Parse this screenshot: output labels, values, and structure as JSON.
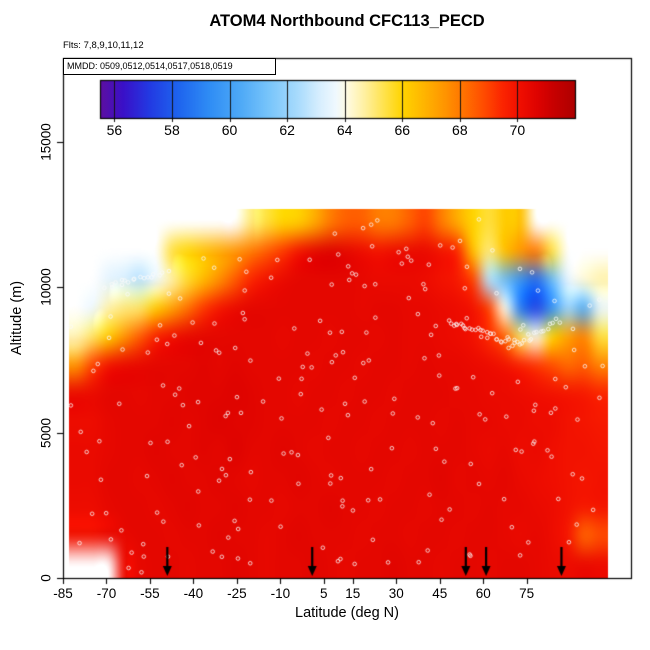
{
  "page": {
    "background": "#FFFFFF"
  },
  "chart_data": {
    "type": "heatmap",
    "title": "ATOM4 Northbound CFC113_PECD",
    "flights_label": "Flts: 7,8,9,10,11,12",
    "mmdd_label": "MMDD: 0509,0512,0514,0517,0518,0519",
    "xlabel": "Latitude (deg N)",
    "ylabel": "Altitude (m)",
    "x_ticks": [
      -85,
      -70,
      -55,
      -40,
      -25,
      -10,
      5,
      15,
      30,
      45,
      60,
      75
    ],
    "x_range": [
      -85,
      111
    ],
    "y_ticks": [
      0,
      5000,
      10000,
      15000
    ],
    "y_range": [
      0,
      17900
    ],
    "colorbar": {
      "ticks": [
        56,
        58,
        60,
        62,
        64,
        66,
        68,
        70
      ],
      "range": [
        55.5,
        72
      ],
      "stops": [
        [
          55.5,
          "#5E0FA0"
        ],
        [
          56.3,
          "#3A10C8"
        ],
        [
          57.2,
          "#2339E2"
        ],
        [
          58.2,
          "#1E63EE"
        ],
        [
          59.3,
          "#2F8DF5"
        ],
        [
          60.4,
          "#4FAAF7"
        ],
        [
          61.4,
          "#7AC6FB"
        ],
        [
          62.4,
          "#AADCFD"
        ],
        [
          63.1,
          "#D6EEFE"
        ],
        [
          63.7,
          "#F0F9FF"
        ],
        [
          64.1,
          "#FFFBE0"
        ],
        [
          64.7,
          "#FFF0A0"
        ],
        [
          65.3,
          "#FFE455"
        ],
        [
          66.0,
          "#FFD400"
        ],
        [
          66.8,
          "#FFB300"
        ],
        [
          67.5,
          "#FF9400"
        ],
        [
          68.2,
          "#FF6F00"
        ],
        [
          68.9,
          "#FF4800"
        ],
        [
          69.5,
          "#FB2400"
        ],
        [
          70.1,
          "#F00E00"
        ],
        [
          70.7,
          "#DE0300"
        ],
        [
          71.3,
          "#C60000"
        ],
        [
          72.0,
          "#AE0000"
        ]
      ]
    },
    "arrows_lat": [
      -49,
      1,
      54,
      61,
      87
    ],
    "arrow_color": "#000000",
    "heatmap": {
      "x_extent": [
        -83,
        103
      ],
      "alt_extent": [
        0,
        12700
      ],
      "cols": 34,
      "rows": 13,
      "row0": "bottom",
      "values": [
        [
          null,
          null,
          null,
          70.2,
          70.4,
          70.5,
          70.5,
          70.4,
          70.5,
          70.5,
          70.6,
          70.5,
          70.4,
          70.5,
          70.5,
          70.6,
          70.5,
          70.4,
          70.5,
          70.5,
          70.6,
          70.5,
          70.5,
          70.4,
          70.5,
          70.5,
          70.4,
          70.5,
          70.5,
          70.4,
          70.3,
          70.2,
          70.3,
          70.2
        ],
        [
          70.0,
          70.0,
          70.3,
          70.4,
          70.5,
          70.5,
          70.4,
          70.5,
          70.5,
          70.6,
          70.5,
          70.5,
          70.4,
          70.5,
          70.6,
          70.5,
          70.5,
          70.5,
          70.4,
          70.5,
          70.5,
          70.4,
          70.5,
          70.5,
          70.4,
          70.5,
          70.5,
          70.4,
          70.3,
          70.4,
          70.2,
          69.8,
          68.4,
          68.8
        ],
        [
          70.2,
          70.2,
          70.4,
          70.5,
          70.5,
          70.4,
          70.5,
          70.6,
          70.5,
          70.5,
          70.6,
          70.5,
          70.5,
          70.4,
          70.5,
          70.5,
          70.6,
          70.5,
          70.5,
          70.4,
          70.5,
          70.5,
          70.4,
          70.5,
          70.5,
          70.4,
          70.5,
          70.4,
          70.4,
          70.3,
          70.2,
          70.0,
          69.8,
          69.9
        ],
        [
          70.3,
          70.3,
          70.5,
          70.5,
          70.4,
          70.5,
          70.6,
          70.5,
          70.5,
          70.6,
          70.5,
          70.4,
          70.5,
          70.5,
          70.6,
          70.5,
          70.4,
          70.5,
          70.5,
          70.5,
          70.4,
          70.5,
          70.5,
          70.6,
          70.4,
          70.5,
          70.4,
          70.5,
          70.3,
          70.2,
          70.1,
          70.0,
          69.9,
          70.0
        ],
        [
          70.3,
          70.3,
          70.4,
          70.5,
          70.5,
          70.6,
          70.5,
          70.5,
          70.6,
          70.5,
          70.7,
          70.5,
          70.5,
          70.6,
          70.5,
          70.4,
          70.5,
          70.5,
          70.4,
          70.5,
          70.5,
          70.4,
          70.5,
          70.5,
          70.5,
          70.4,
          70.3,
          70.4,
          70.2,
          70.3,
          70.1,
          70.0,
          70.0,
          69.9
        ],
        [
          70.2,
          70.2,
          70.4,
          70.5,
          70.5,
          70.5,
          70.6,
          70.5,
          70.6,
          70.7,
          70.6,
          70.6,
          70.5,
          70.5,
          70.5,
          70.5,
          70.4,
          70.5,
          70.5,
          70.4,
          70.5,
          70.5,
          70.5,
          70.4,
          70.5,
          70.4,
          70.4,
          70.3,
          70.3,
          70.2,
          70.2,
          70.0,
          69.9,
          69.8
        ],
        [
          70.3,
          70.3,
          70.5,
          70.5,
          70.4,
          70.5,
          70.5,
          70.6,
          70.6,
          70.6,
          70.7,
          70.6,
          70.5,
          70.5,
          70.4,
          70.5,
          70.5,
          70.4,
          70.5,
          70.5,
          70.4,
          70.5,
          70.5,
          70.5,
          70.4,
          70.4,
          70.3,
          70.3,
          70.2,
          70.1,
          70.0,
          69.9,
          69.8,
          69.5
        ],
        [
          67.5,
          69.0,
          70.0,
          70.3,
          70.4,
          70.5,
          70.5,
          70.5,
          70.6,
          70.5,
          70.6,
          70.5,
          70.5,
          70.5,
          70.5,
          70.4,
          70.5,
          70.5,
          70.4,
          70.5,
          70.5,
          70.4,
          70.5,
          70.4,
          70.4,
          70.3,
          70.2,
          70.0,
          69.6,
          69.2,
          68.8,
          68.3,
          68.5,
          67.8
        ],
        [
          64.5,
          65.2,
          66.2,
          67.5,
          68.6,
          69.6,
          70.1,
          70.4,
          70.5,
          70.5,
          70.5,
          70.5,
          70.5,
          70.4,
          70.5,
          70.5,
          70.4,
          70.5,
          70.5,
          70.4,
          70.5,
          70.4,
          70.4,
          70.3,
          70.2,
          70.0,
          69.4,
          68.4,
          65.2,
          64.0,
          66.0,
          67.2,
          67.8,
          65.5
        ],
        [
          null,
          63.6,
          64.6,
          65.0,
          65.2,
          66.2,
          67.2,
          68.2,
          69.2,
          69.9,
          70.3,
          70.5,
          70.5,
          70.5,
          70.5,
          70.5,
          70.5,
          70.5,
          70.4,
          70.5,
          70.5,
          70.4,
          70.4,
          70.3,
          70.2,
          70.0,
          69.0,
          64.0,
          58.8,
          57.5,
          59.5,
          62.0,
          60.5,
          63.5
        ],
        [
          null,
          null,
          63.4,
          63.1,
          62.6,
          63.6,
          64.6,
          65.6,
          66.6,
          67.6,
          68.6,
          69.5,
          70.0,
          70.3,
          70.5,
          70.5,
          70.5,
          70.5,
          70.4,
          70.3,
          70.3,
          70.3,
          70.2,
          70.0,
          69.8,
          69.0,
          62.5,
          61.0,
          59.5,
          58.5,
          61.0,
          63.5,
          64.2,
          64.6
        ],
        [
          null,
          null,
          null,
          null,
          null,
          null,
          65.5,
          66.0,
          66.5,
          67.0,
          67.5,
          68.0,
          68.6,
          69.2,
          70.0,
          70.5,
          70.7,
          70.5,
          70.2,
          70.0,
          70.2,
          70.3,
          70.3,
          70.0,
          69.5,
          66.5,
          65.0,
          66.5,
          67.5,
          68.0,
          65.5,
          null,
          null,
          null
        ],
        [
          null,
          null,
          null,
          null,
          null,
          null,
          null,
          null,
          null,
          null,
          null,
          65.0,
          65.5,
          66.0,
          66.2,
          67.0,
          68.0,
          68.5,
          68.5,
          68.0,
          68.0,
          68.5,
          69.0,
          68.0,
          67.0,
          66.0,
          65.5,
          66.2,
          66.5,
          null,
          null,
          null,
          null,
          null
        ]
      ]
    },
    "sample_points": {
      "scatter_count": 230,
      "seed": 42,
      "radius": 1.8,
      "color": "rgba(250,250,250,0.9)",
      "chains": [
        {
          "x0": 50,
          "a0": 8700,
          "x1": 72,
          "a1": 8050,
          "n": 30,
          "jitter": 260
        },
        {
          "x0": 72,
          "a0": 8050,
          "x1": 86,
          "a1": 8900,
          "n": 14,
          "jitter": 220
        },
        {
          "x0": -70,
          "a0": 10050,
          "x1": -52,
          "a1": 10450,
          "n": 15,
          "jitter": 150
        }
      ]
    }
  }
}
